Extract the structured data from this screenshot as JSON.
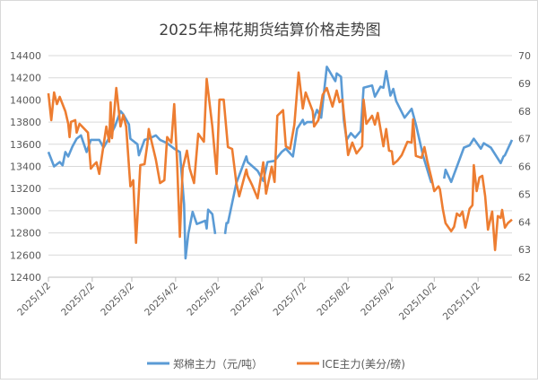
{
  "chart_data": {
    "type": "line",
    "title": "2025年棉花期货结算价格走势图",
    "xlim": [
      "2025-01-02",
      "2025-11-26"
    ],
    "x_ticks": [
      "2025/1/2",
      "2025/2/2",
      "2025/3/2",
      "2025/4/2",
      "2025/5/2",
      "2025/6/2",
      "2025/7/2",
      "2025/8/2",
      "2025/9/2",
      "2025/10/2",
      "2025/11/2"
    ],
    "y_left": {
      "min": 12400,
      "max": 14400,
      "step": 200,
      "ticks": [
        "12400",
        "12600",
        "12800",
        "13000",
        "13200",
        "13400",
        "13600",
        "13800",
        "14000",
        "14200",
        "14400"
      ]
    },
    "y_right": {
      "min": 62,
      "max": 70,
      "step": 1,
      "ticks": [
        "62",
        "63",
        "64",
        "65",
        "66",
        "67",
        "68",
        "69",
        "70"
      ]
    },
    "grid": true,
    "legend_position": "bottom",
    "series": [
      {
        "name": "郑棉主力（元/吨）",
        "axis": "left",
        "color": "#5B9BD5",
        "points": [
          [
            "2025-01-02",
            13530
          ],
          [
            "2025-01-06",
            13400
          ],
          [
            "2025-01-10",
            13440
          ],
          [
            "2025-01-12",
            13410
          ],
          [
            "2025-01-14",
            13530
          ],
          [
            "2025-01-16",
            13490
          ],
          [
            "2025-01-19",
            13580
          ],
          [
            "2025-01-22",
            13650
          ],
          [
            "2025-01-25",
            13680
          ],
          [
            "2025-01-29",
            13530
          ],
          [
            "2025-02-01",
            13640
          ],
          [
            "2025-02-07",
            13640
          ],
          [
            "2025-02-10",
            13570
          ],
          [
            "2025-02-14",
            13660
          ],
          [
            "2025-02-18",
            13760
          ],
          [
            "2025-02-22",
            13900
          ],
          [
            "2025-02-24",
            13870
          ],
          [
            "2025-02-28",
            13780
          ],
          [
            "2025-03-01",
            13650
          ],
          [
            "2025-03-06",
            13600
          ],
          [
            "2025-03-07",
            13500
          ],
          [
            "2025-03-11",
            13640
          ],
          [
            "2025-03-14",
            13650
          ],
          [
            "2025-03-19",
            13680
          ],
          [
            "2025-03-22",
            13640
          ],
          [
            "2025-03-27",
            13610
          ],
          [
            "2025-04-01",
            13560
          ],
          [
            "2025-04-05",
            13530
          ],
          [
            "2025-04-08",
            13060
          ],
          [
            "2025-04-09",
            12570
          ],
          [
            "2025-04-11",
            12790
          ],
          [
            "2025-04-14",
            12990
          ],
          [
            "2025-04-17",
            12880
          ],
          [
            "2025-04-23",
            12910
          ],
          [
            "2025-04-24",
            12840
          ],
          [
            "2025-04-25",
            13010
          ],
          [
            "2025-04-28",
            12970
          ],
          [
            "2025-04-30",
            12790
          ],
          [
            "2025-05-03",
            null
          ],
          [
            "2025-05-07",
            12790
          ],
          [
            "2025-05-08",
            12890
          ],
          [
            "2025-05-09",
            12890
          ],
          [
            "2025-05-15",
            13250
          ],
          [
            "2025-05-22",
            13490
          ],
          [
            "2025-05-23",
            13440
          ],
          [
            "2025-05-30",
            13360
          ],
          [
            "2025-06-03",
            13270
          ],
          [
            "2025-06-06",
            13440
          ],
          [
            "2025-06-11",
            13450
          ],
          [
            "2025-06-16",
            13530
          ],
          [
            "2025-06-19",
            13560
          ],
          [
            "2025-06-24",
            13490
          ],
          [
            "2025-06-27",
            13740
          ],
          [
            "2025-07-01",
            13820
          ],
          [
            "2025-07-02",
            13780
          ],
          [
            "2025-07-04",
            13800
          ],
          [
            "2025-07-08",
            13800
          ],
          [
            "2025-07-11",
            13910
          ],
          [
            "2025-07-14",
            13840
          ],
          [
            "2025-07-18",
            14300
          ],
          [
            "2025-07-23",
            14190
          ],
          [
            "2025-07-24",
            14170
          ],
          [
            "2025-07-25",
            14240
          ],
          [
            "2025-07-28",
            14210
          ],
          [
            "2025-07-30",
            13820
          ],
          [
            "2025-08-01",
            13640
          ],
          [
            "2025-08-04",
            13700
          ],
          [
            "2025-08-07",
            13660
          ],
          [
            "2025-08-11",
            13720
          ],
          [
            "2025-08-13",
            14110
          ],
          [
            "2025-08-19",
            14130
          ],
          [
            "2025-08-21",
            14030
          ],
          [
            "2025-08-25",
            14120
          ],
          [
            "2025-08-27",
            14110
          ],
          [
            "2025-08-29",
            14260
          ],
          [
            "2025-09-01",
            14040
          ],
          [
            "2025-09-03",
            14100
          ],
          [
            "2025-09-05",
            13990
          ],
          [
            "2025-09-11",
            13840
          ],
          [
            "2025-09-16",
            13920
          ],
          [
            "2025-09-19",
            13780
          ],
          [
            "2025-09-24",
            13500
          ],
          [
            "2025-09-29",
            13290
          ],
          [
            "2025-09-30",
            13250
          ],
          [
            "2025-10-04",
            null
          ],
          [
            "2025-10-09",
            13290
          ],
          [
            "2025-10-10",
            13370
          ],
          [
            "2025-10-14",
            13260
          ],
          [
            "2025-10-23",
            13570
          ],
          [
            "2025-10-27",
            13590
          ],
          [
            "2025-10-30",
            13650
          ],
          [
            "2025-11-04",
            13560
          ],
          [
            "2025-11-06",
            13610
          ],
          [
            "2025-11-11",
            13570
          ],
          [
            "2025-11-18",
            13430
          ],
          [
            "2025-11-20",
            13490
          ],
          [
            "2025-11-21",
            13500
          ],
          [
            "2025-11-26",
            13640
          ]
        ]
      },
      {
        "name": "ICE主力(美分/磅)",
        "axis": "right",
        "color": "#ED7D31",
        "points": [
          [
            "2025-01-02",
            68.64
          ],
          [
            "2025-01-04",
            67.67
          ],
          [
            "2025-01-06",
            68.67
          ],
          [
            "2025-01-08",
            68.25
          ],
          [
            "2025-01-10",
            68.51
          ],
          [
            "2025-01-14",
            67.99
          ],
          [
            "2025-01-16",
            67.54
          ],
          [
            "2025-01-17",
            67.06
          ],
          [
            "2025-01-18",
            67.61
          ],
          [
            "2025-01-21",
            67.67
          ],
          [
            "2025-01-22",
            67.22
          ],
          [
            "2025-01-24",
            67.54
          ],
          [
            "2025-01-30",
            67.22
          ],
          [
            "2025-02-01",
            65.92
          ],
          [
            "2025-02-03",
            66.05
          ],
          [
            "2025-02-05",
            66.15
          ],
          [
            "2025-02-07",
            65.73
          ],
          [
            "2025-02-12",
            67.44
          ],
          [
            "2025-02-14",
            66.89
          ],
          [
            "2025-02-15",
            68.32
          ],
          [
            "2025-02-16",
            67.02
          ],
          [
            "2025-02-19",
            68.83
          ],
          [
            "2025-02-22",
            67.44
          ],
          [
            "2025-02-24",
            67.86
          ],
          [
            "2025-02-26",
            67.44
          ],
          [
            "2025-03-01",
            65.28
          ],
          [
            "2025-03-03",
            65.5
          ],
          [
            "2025-03-05",
            63.24
          ],
          [
            "2025-03-08",
            66.05
          ],
          [
            "2025-03-11",
            66.08
          ],
          [
            "2025-03-13",
            66.8
          ],
          [
            "2025-03-14",
            67.35
          ],
          [
            "2025-03-16",
            66.89
          ],
          [
            "2025-03-19",
            66.25
          ],
          [
            "2025-03-22",
            65.4
          ],
          [
            "2025-03-25",
            65.5
          ],
          [
            "2025-03-27",
            67.06
          ],
          [
            "2025-03-30",
            66.86
          ],
          [
            "2025-04-01",
            68.25
          ],
          [
            "2025-04-03",
            66.25
          ],
          [
            "2025-04-05",
            63.46
          ],
          [
            "2025-04-07",
            65.92
          ],
          [
            "2025-04-10",
            66.57
          ],
          [
            "2025-04-12",
            65.92
          ],
          [
            "2025-04-15",
            65.4
          ],
          [
            "2025-04-18",
            67.18
          ],
          [
            "2025-04-22",
            66.89
          ],
          [
            "2025-04-24",
            69.16
          ],
          [
            "2025-04-28",
            67.44
          ],
          [
            "2025-05-01",
            65.73
          ],
          [
            "2025-05-03",
            68.41
          ],
          [
            "2025-05-06",
            68.41
          ],
          [
            "2025-05-09",
            66.7
          ],
          [
            "2025-05-12",
            66.63
          ],
          [
            "2025-05-15",
            65.4
          ],
          [
            "2025-05-17",
            64.92
          ],
          [
            "2025-05-22",
            65.89
          ],
          [
            "2025-05-23",
            65.66
          ],
          [
            "2025-05-26",
            65.34
          ],
          [
            "2025-05-30",
            64.85
          ],
          [
            "2025-06-03",
            66.15
          ],
          [
            "2025-06-05",
            65.02
          ],
          [
            "2025-06-09",
            65.99
          ],
          [
            "2025-06-11",
            65.44
          ],
          [
            "2025-06-13",
            67.83
          ],
          [
            "2025-06-17",
            68.03
          ],
          [
            "2025-06-19",
            66.73
          ],
          [
            "2025-06-22",
            66.63
          ],
          [
            "2025-06-25",
            67.51
          ],
          [
            "2025-06-28",
            69.39
          ],
          [
            "2025-07-01",
            68.09
          ],
          [
            "2025-07-03",
            68.67
          ],
          [
            "2025-07-08",
            67.99
          ],
          [
            "2025-07-09",
            67.44
          ],
          [
            "2025-07-12",
            67.67
          ],
          [
            "2025-07-15",
            68.58
          ],
          [
            "2025-07-18",
            68.83
          ],
          [
            "2025-07-22",
            68.16
          ],
          [
            "2025-07-25",
            68.74
          ],
          [
            "2025-07-27",
            68.32
          ],
          [
            "2025-07-29",
            68.41
          ],
          [
            "2025-08-02",
            66.41
          ],
          [
            "2025-08-05",
            66.86
          ],
          [
            "2025-08-08",
            66.47
          ],
          [
            "2025-08-12",
            66.73
          ],
          [
            "2025-08-13",
            68.41
          ],
          [
            "2025-08-15",
            67.54
          ],
          [
            "2025-08-19",
            67.83
          ],
          [
            "2025-08-21",
            67.51
          ],
          [
            "2025-08-23",
            67.93
          ],
          [
            "2025-08-27",
            66.73
          ],
          [
            "2025-08-29",
            67.35
          ],
          [
            "2025-08-31",
            66.57
          ],
          [
            "2025-09-02",
            66.54
          ],
          [
            "2025-09-03",
            66.08
          ],
          [
            "2025-09-06",
            66.21
          ],
          [
            "2025-09-09",
            66.41
          ],
          [
            "2025-09-13",
            66.89
          ],
          [
            "2025-09-16",
            66.86
          ],
          [
            "2025-09-17",
            67.7
          ],
          [
            "2025-09-19",
            66.38
          ],
          [
            "2025-09-23",
            66.31
          ],
          [
            "2025-09-25",
            66.7
          ],
          [
            "2025-09-27",
            66.21
          ],
          [
            "2025-09-30",
            65.57
          ],
          [
            "2025-10-02",
            65.11
          ],
          [
            "2025-10-05",
            65.28
          ],
          [
            "2025-10-06",
            65.18
          ],
          [
            "2025-10-08",
            64.47
          ],
          [
            "2025-10-10",
            63.95
          ],
          [
            "2025-10-14",
            63.66
          ],
          [
            "2025-10-16",
            63.82
          ],
          [
            "2025-10-18",
            64.3
          ],
          [
            "2025-10-20",
            64.21
          ],
          [
            "2025-10-22",
            64.37
          ],
          [
            "2025-10-24",
            63.79
          ],
          [
            "2025-10-27",
            64.47
          ],
          [
            "2025-10-29",
            64.6
          ],
          [
            "2025-10-30",
            66.05
          ],
          [
            "2025-11-01",
            65.11
          ],
          [
            "2025-11-03",
            65.6
          ],
          [
            "2025-11-05",
            65.66
          ],
          [
            "2025-11-07",
            64.92
          ],
          [
            "2025-11-09",
            63.72
          ],
          [
            "2025-11-12",
            64.37
          ],
          [
            "2025-11-14",
            62.98
          ],
          [
            "2025-11-16",
            64.21
          ],
          [
            "2025-11-18",
            64.14
          ],
          [
            "2025-11-19",
            64.43
          ],
          [
            "2025-11-21",
            63.79
          ],
          [
            "2025-11-23",
            63.95
          ],
          [
            "2025-11-26",
            64.08
          ]
        ]
      }
    ]
  }
}
